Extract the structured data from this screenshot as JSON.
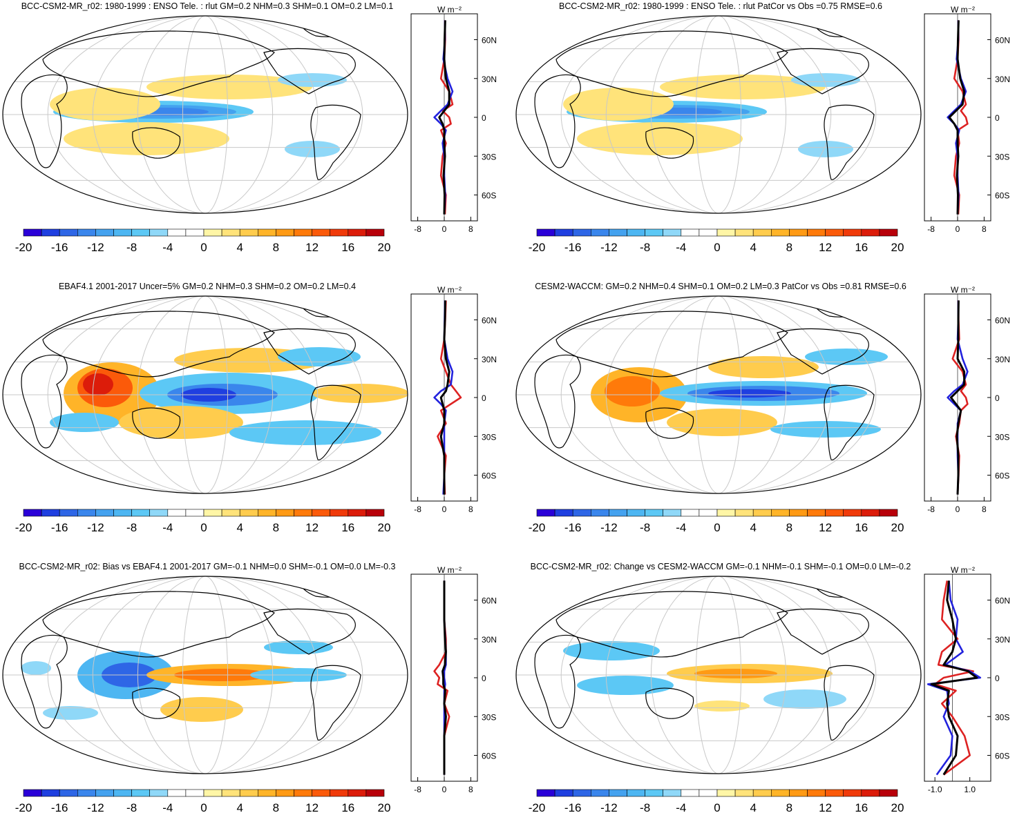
{
  "colorbar": {
    "levels": [
      -20,
      -18,
      -16,
      -14,
      -12,
      -10,
      -8,
      -6,
      -4,
      -2,
      0,
      2,
      4,
      6,
      8,
      10,
      12,
      14,
      16,
      18,
      20
    ],
    "labels": [
      "-20",
      "-16",
      "-12",
      "-8",
      "-4",
      "0",
      "4",
      "8",
      "12",
      "16",
      "20"
    ],
    "colors": [
      "#2a00d8",
      "#1f3fe0",
      "#2e66e6",
      "#3a86ec",
      "#44a2ef",
      "#4db6f2",
      "#5cc8f5",
      "#8fd8f8",
      "#ffffff",
      "#ffffff",
      "#fff6a6",
      "#ffe37a",
      "#ffcc4d",
      "#ffb428",
      "#ff9a14",
      "#ff7a0a",
      "#fb5a0a",
      "#f03a0a",
      "#dc1c0a",
      "#b8000a"
    ]
  },
  "profile_units": "W m⁻²",
  "lat_ticks": [
    "60N",
    "30N",
    "0",
    "30S",
    "60S"
  ],
  "line_colors": {
    "model": "#dd2222",
    "obs": "#2222dd",
    "diff": "#000000"
  },
  "panels": [
    {
      "id": "p1",
      "title": "BCC-CSM2-MR_r02: 1980-1999 : ENSO Tele. : rlut GM=0.2 NHM=0.3 SHM=0.1 OM=0.2 LM=0.1",
      "profile_ticks": [
        "-8",
        "0",
        "8"
      ],
      "chart_data": {
        "type": "line",
        "title": "BCC-CSM2-MR_r02: 1980-1999 : ENSO Tele. : rlut GM=0.2 NHM=0.3 SHM=0.1 OM=0.2 LM=0.1",
        "xlabel": "W m-2",
        "xlim": [
          -10,
          10
        ],
        "ylim": [
          -80,
          80
        ],
        "lat": [
          75,
          60,
          45,
          30,
          20,
          10,
          5,
          0,
          -5,
          -10,
          -20,
          -30,
          -45,
          -60,
          -75
        ],
        "series": [
          {
            "name": "red",
            "values": [
              0.2,
              0.3,
              0.0,
              -1.0,
              1.5,
              2.5,
              -0.5,
              1.5,
              2.0,
              -1.0,
              0.5,
              -0.5,
              -1.0,
              0.5,
              0.2
            ]
          },
          {
            "name": "blue",
            "values": [
              0.2,
              0.2,
              -0.3,
              1.0,
              2.5,
              1.0,
              -1.0,
              -3.0,
              -1.0,
              0.5,
              -0.5,
              0.0,
              0.0,
              0.3,
              0.0
            ]
          },
          {
            "name": "black",
            "values": [
              0.3,
              0.1,
              0.0,
              0.5,
              1.5,
              1.5,
              0.0,
              -1.5,
              -0.5,
              0.0,
              0.0,
              0.2,
              -0.2,
              0.1,
              0.0
            ]
          }
        ]
      },
      "blobs": [
        {
          "cx": 220,
          "cy": 146,
          "rx": 145,
          "ry": 16,
          "c": 6
        },
        {
          "cx": 230,
          "cy": 146,
          "rx": 110,
          "ry": 10,
          "c": 4
        },
        {
          "cx": 240,
          "cy": 146,
          "rx": 60,
          "ry": 6,
          "c": 3
        },
        {
          "cx": 150,
          "cy": 135,
          "rx": 80,
          "ry": 24,
          "c": 11
        },
        {
          "cx": 330,
          "cy": 110,
          "rx": 120,
          "ry": 18,
          "c": 11
        },
        {
          "cx": 210,
          "cy": 185,
          "rx": 120,
          "ry": 24,
          "c": 11
        },
        {
          "cx": 450,
          "cy": 100,
          "rx": 50,
          "ry": 10,
          "c": 7
        },
        {
          "cx": 450,
          "cy": 200,
          "rx": 40,
          "ry": 12,
          "c": 7
        }
      ]
    },
    {
      "id": "p2",
      "title": "BCC-CSM2-MR_r02: 1980-1999 : ENSO Tele. : rlut PatCor vs Obs =0.75 RMSE=0.6",
      "profile_ticks": [
        "-8",
        "0",
        "8"
      ],
      "chart_data": {
        "type": "line",
        "title": "BCC-CSM2-MR_r02: 1980-1999 : ENSO Tele. : rlut PatCor vs Obs =0.75 RMSE=0.6",
        "xlabel": "W m-2",
        "xlim": [
          -10,
          10
        ],
        "ylim": [
          -80,
          80
        ],
        "lat": [
          75,
          60,
          45,
          30,
          20,
          10,
          5,
          0,
          -5,
          -10,
          -20,
          -30,
          -45,
          -60,
          -75
        ],
        "series": [
          {
            "name": "red",
            "values": [
              0.2,
              0.3,
              0.0,
              -1.0,
              1.5,
              2.5,
              1.0,
              2.5,
              3.0,
              0.0,
              0.5,
              -0.5,
              -1.0,
              0.5,
              0.2
            ]
          },
          {
            "name": "blue",
            "values": [
              0.2,
              0.2,
              -0.3,
              1.0,
              2.5,
              1.0,
              -1.0,
              -3.0,
              -1.0,
              0.5,
              -0.5,
              0.0,
              0.0,
              0.3,
              0.0
            ]
          },
          {
            "name": "black",
            "values": [
              0.3,
              0.1,
              0.0,
              0.8,
              2.0,
              1.5,
              -0.5,
              -2.5,
              -1.0,
              0.0,
              0.0,
              0.2,
              -0.2,
              0.1,
              0.0
            ]
          }
        ]
      },
      "blobs": [
        {
          "cx": 220,
          "cy": 146,
          "rx": 145,
          "ry": 16,
          "c": 6
        },
        {
          "cx": 230,
          "cy": 146,
          "rx": 110,
          "ry": 10,
          "c": 4
        },
        {
          "cx": 240,
          "cy": 146,
          "rx": 60,
          "ry": 6,
          "c": 3
        },
        {
          "cx": 150,
          "cy": 135,
          "rx": 80,
          "ry": 24,
          "c": 11
        },
        {
          "cx": 330,
          "cy": 110,
          "rx": 120,
          "ry": 18,
          "c": 11
        },
        {
          "cx": 210,
          "cy": 185,
          "rx": 120,
          "ry": 24,
          "c": 11
        },
        {
          "cx": 450,
          "cy": 100,
          "rx": 50,
          "ry": 10,
          "c": 7
        },
        {
          "cx": 450,
          "cy": 200,
          "rx": 40,
          "ry": 12,
          "c": 7
        }
      ]
    },
    {
      "id": "p3",
      "title": "EBAF4.1 2001-2017 Uncer=5% GM=0.2 NHM=0.3 SHM=0.2 OM=0.2 LM=0.4",
      "profile_ticks": [
        "-8",
        "0",
        "8"
      ],
      "chart_data": {
        "type": "line",
        "title": "EBAF4.1 2001-2017 Uncer=5% GM=0.2 NHM=0.3 SHM=0.2 OM=0.2 LM=0.4",
        "xlabel": "W m-2",
        "xlim": [
          -10,
          10
        ],
        "ylim": [
          -80,
          80
        ],
        "lat": [
          75,
          60,
          45,
          30,
          20,
          10,
          5,
          0,
          -5,
          -10,
          -20,
          -30,
          -45,
          -60,
          -75
        ],
        "series": [
          {
            "name": "red",
            "values": [
              0.5,
              0.3,
              0.0,
              -1.0,
              0.5,
              2.0,
              3.5,
              5.0,
              2.0,
              -1.0,
              0.5,
              -2.0,
              0.5,
              0.0,
              0.2
            ]
          },
          {
            "name": "blue",
            "values": [
              0.2,
              0.1,
              0.0,
              1.0,
              2.5,
              2.0,
              -1.0,
              -3.0,
              -1.0,
              0.5,
              0.0,
              0.0,
              0.0,
              0.0,
              -0.3
            ]
          },
          {
            "name": "black",
            "values": [
              0.3,
              0.2,
              0.0,
              0.5,
              1.5,
              1.0,
              0.5,
              -1.0,
              -0.5,
              0.0,
              0.0,
              -1.0,
              0.0,
              0.0,
              0.0
            ]
          }
        ]
      },
      "blobs": [
        {
          "cx": 160,
          "cy": 148,
          "rx": 70,
          "ry": 45,
          "c": 13
        },
        {
          "cx": 150,
          "cy": 140,
          "rx": 40,
          "ry": 28,
          "c": 16
        },
        {
          "cx": 140,
          "cy": 135,
          "rx": 22,
          "ry": 16,
          "c": 18
        },
        {
          "cx": 330,
          "cy": 148,
          "rx": 130,
          "ry": 30,
          "c": 6
        },
        {
          "cx": 320,
          "cy": 150,
          "rx": 80,
          "ry": 16,
          "c": 3
        },
        {
          "cx": 300,
          "cy": 150,
          "rx": 40,
          "ry": 10,
          "c": 1
        },
        {
          "cx": 360,
          "cy": 100,
          "rx": 110,
          "ry": 18,
          "c": 12
        },
        {
          "cx": 260,
          "cy": 190,
          "rx": 90,
          "ry": 24,
          "c": 12
        },
        {
          "cx": 440,
          "cy": 205,
          "rx": 110,
          "ry": 18,
          "c": 6
        },
        {
          "cx": 120,
          "cy": 190,
          "rx": 50,
          "ry": 14,
          "c": 6
        },
        {
          "cx": 460,
          "cy": 95,
          "rx": 60,
          "ry": 14,
          "c": 6
        },
        {
          "cx": 520,
          "cy": 148,
          "rx": 70,
          "ry": 14,
          "c": 12
        }
      ]
    },
    {
      "id": "p4",
      "title": "CESM2-WACCM: GM=0.2 NHM=0.4 SHM=0.1 OM=0.2 LM=0.3 PatCor vs Obs =0.81 RMSE=0.6",
      "profile_ticks": [
        "-8",
        "0",
        "8"
      ],
      "chart_data": {
        "type": "line",
        "title": "CESM2-WACCM: GM=0.2 NHM=0.4 SHM=0.1 OM=0.2 LM=0.3 PatCor vs Obs =0.81 RMSE=0.6",
        "xlabel": "W m-2",
        "xlim": [
          -10,
          10
        ],
        "ylim": [
          -80,
          80
        ],
        "lat": [
          75,
          60,
          45,
          30,
          20,
          10,
          5,
          0,
          -5,
          -10,
          -20,
          -30,
          -45,
          -60,
          -75
        ],
        "series": [
          {
            "name": "red",
            "values": [
              0.2,
              0.3,
              0.5,
              -1.5,
              1.5,
              2.5,
              1.0,
              2.5,
              3.0,
              1.0,
              0.5,
              -0.5,
              0.5,
              0.3,
              0.0
            ]
          },
          {
            "name": "blue",
            "values": [
              0.2,
              0.2,
              0.0,
              1.5,
              3.0,
              1.5,
              -1.0,
              -3.0,
              -1.0,
              1.0,
              0.0,
              0.0,
              0.0,
              0.2,
              0.0
            ]
          },
          {
            "name": "black",
            "values": [
              0.3,
              0.2,
              0.2,
              0.0,
              2.0,
              2.0,
              0.0,
              -2.0,
              -0.5,
              1.0,
              0.2,
              -0.2,
              0.2,
              0.2,
              0.0
            ]
          }
        ]
      },
      "blobs": [
        {
          "cx": 180,
          "cy": 150,
          "rx": 70,
          "ry": 40,
          "c": 13
        },
        {
          "cx": 170,
          "cy": 145,
          "rx": 40,
          "ry": 22,
          "c": 15
        },
        {
          "cx": 360,
          "cy": 148,
          "rx": 150,
          "ry": 18,
          "c": 6
        },
        {
          "cx": 360,
          "cy": 148,
          "rx": 110,
          "ry": 11,
          "c": 3
        },
        {
          "cx": 340,
          "cy": 148,
          "rx": 60,
          "ry": 6,
          "c": 1
        },
        {
          "cx": 360,
          "cy": 110,
          "rx": 80,
          "ry": 16,
          "c": 12
        },
        {
          "cx": 300,
          "cy": 190,
          "rx": 80,
          "ry": 20,
          "c": 12
        },
        {
          "cx": 450,
          "cy": 200,
          "rx": 80,
          "ry": 12,
          "c": 6
        },
        {
          "cx": 480,
          "cy": 95,
          "rx": 60,
          "ry": 12,
          "c": 6
        }
      ]
    },
    {
      "id": "p5",
      "title": "BCC-CSM2-MR_r02: Bias vs EBAF4.1 2001-2017 GM=-0.1 NHM=0.0 SHM=-0.1 OM=0.0 LM=-0.3",
      "profile_ticks": [
        "-8",
        "0",
        "8"
      ],
      "chart_data": {
        "type": "line",
        "title": "BCC-CSM2-MR_r02: Bias vs EBAF4.1 2001-2017 GM=-0.1 NHM=0.0 SHM=-0.1 OM=0.0 LM=-0.3",
        "xlabel": "W m-2",
        "xlim": [
          -10,
          10
        ],
        "ylim": [
          -80,
          80
        ],
        "lat": [
          75,
          60,
          45,
          30,
          20,
          10,
          5,
          0,
          -5,
          -10,
          -20,
          -30,
          -45,
          -60,
          -75
        ],
        "series": [
          {
            "name": "red",
            "values": [
              0.0,
              0.0,
              0.0,
              0.5,
              0.5,
              -1.5,
              -3.0,
              -1.5,
              -2.0,
              1.0,
              0.0,
              1.5,
              0.0,
              0.0,
              0.0
            ]
          },
          {
            "name": "blue",
            "values": [
              0.0,
              0.0,
              0.0,
              0.3,
              0.5,
              0.5,
              0.0,
              0.0,
              0.3,
              0.0,
              0.0,
              0.0,
              0.0,
              0.0,
              0.0
            ]
          },
          {
            "name": "black",
            "values": [
              0.0,
              0.0,
              0.0,
              0.2,
              0.5,
              0.2,
              -0.5,
              -0.3,
              -0.3,
              0.3,
              0.0,
              0.5,
              0.0,
              0.0,
              0.0
            ]
          }
        ]
      },
      "blobs": [
        {
          "cx": 180,
          "cy": 150,
          "rx": 70,
          "ry": 35,
          "c": 5
        },
        {
          "cx": 185,
          "cy": 150,
          "rx": 40,
          "ry": 18,
          "c": 2
        },
        {
          "cx": 330,
          "cy": 150,
          "rx": 120,
          "ry": 16,
          "c": 13
        },
        {
          "cx": 320,
          "cy": 150,
          "rx": 70,
          "ry": 9,
          "c": 15
        },
        {
          "cx": 290,
          "cy": 200,
          "rx": 60,
          "ry": 18,
          "c": 12
        },
        {
          "cx": 430,
          "cy": 150,
          "rx": 70,
          "ry": 10,
          "c": 6
        },
        {
          "cx": 430,
          "cy": 110,
          "rx": 50,
          "ry": 10,
          "c": 6
        },
        {
          "cx": 50,
          "cy": 140,
          "rx": 22,
          "ry": 10,
          "c": 7
        },
        {
          "cx": 100,
          "cy": 205,
          "rx": 40,
          "ry": 10,
          "c": 7
        }
      ]
    },
    {
      "id": "p6",
      "title": "BCC-CSM2-MR_r02: Change vs CESM2-WACCM GM=-0.1 NHM=-0.1 SHM=-0.1 OM=0.0 LM=-0.2",
      "profile_ticks": [
        "-1.0",
        "1.0"
      ],
      "chart_data": {
        "type": "line",
        "title": "BCC-CSM2-MR_r02: Change vs CESM2-WACCM GM=-0.1 NHM=-0.1 SHM=-0.1 OM=0.0 LM=-0.2",
        "xlabel": "W m-2",
        "xlim": [
          -1.6,
          2.2
        ],
        "ylim": [
          -80,
          80
        ],
        "lat": [
          75,
          60,
          45,
          30,
          20,
          10,
          5,
          0,
          -5,
          -10,
          -20,
          -30,
          -45,
          -60,
          -75
        ],
        "series": [
          {
            "name": "red",
            "values": [
              -0.3,
              -0.5,
              -0.6,
              0.3,
              -0.6,
              -0.8,
              1.2,
              -0.5,
              -1.0,
              0.2,
              -0.6,
              0.0,
              0.7,
              1.0,
              -0.5
            ]
          },
          {
            "name": "blue",
            "values": [
              -0.2,
              -0.1,
              0.3,
              0.2,
              0.6,
              -0.4,
              1.0,
              1.6,
              -1.4,
              -0.3,
              -0.2,
              -0.5,
              0.0,
              -0.1,
              -0.9
            ]
          },
          {
            "name": "black",
            "values": [
              -0.2,
              -0.3,
              0.0,
              0.2,
              0.0,
              -0.5,
              0.9,
              1.4,
              -1.2,
              -0.2,
              -0.3,
              -0.2,
              0.3,
              0.2,
              -0.5
            ]
          }
        ]
      },
      "blobs": [
        {
          "cx": 160,
          "cy": 165,
          "rx": 70,
          "ry": 14,
          "c": 6
        },
        {
          "cx": 140,
          "cy": 115,
          "rx": 70,
          "ry": 14,
          "c": 6
        },
        {
          "cx": 340,
          "cy": 148,
          "rx": 120,
          "ry": 14,
          "c": 12
        },
        {
          "cx": 320,
          "cy": 148,
          "rx": 60,
          "ry": 7,
          "c": 14
        },
        {
          "cx": 420,
          "cy": 185,
          "rx": 60,
          "ry": 14,
          "c": 7
        },
        {
          "cx": 300,
          "cy": 195,
          "rx": 40,
          "ry": 8,
          "c": 11
        }
      ]
    }
  ]
}
